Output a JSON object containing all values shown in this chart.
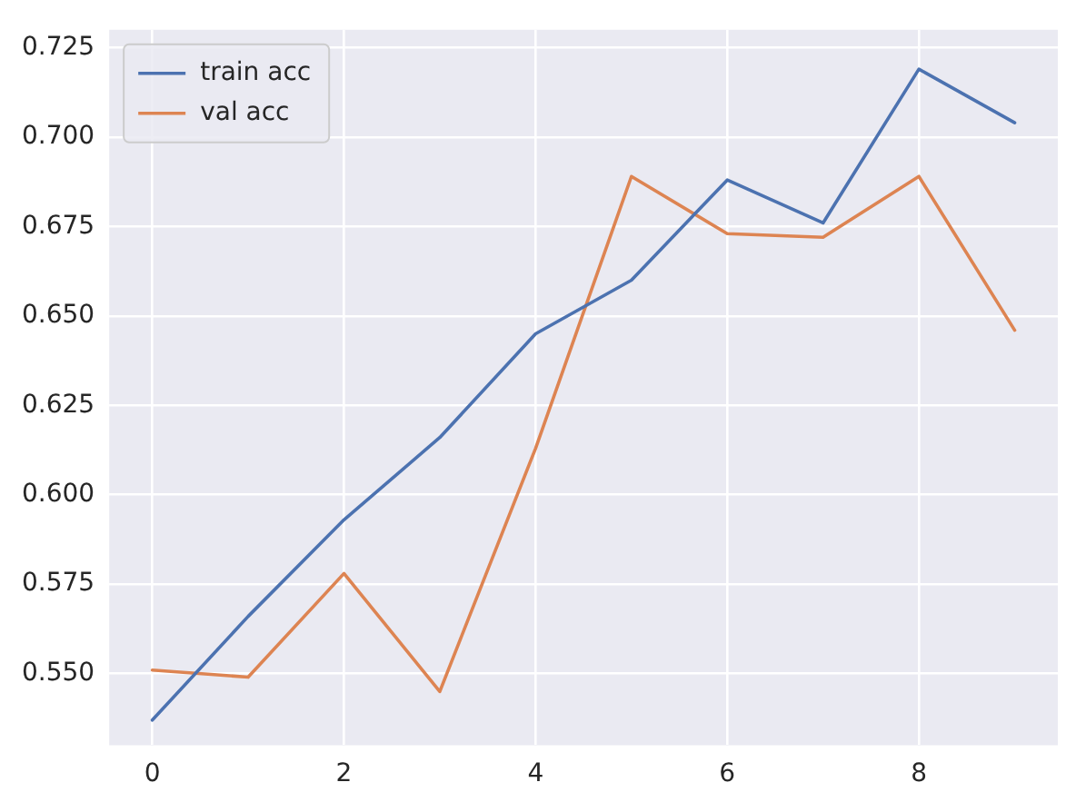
{
  "chart_data": {
    "type": "line",
    "x": [
      0,
      1,
      2,
      3,
      4,
      5,
      6,
      7,
      8,
      9
    ],
    "series": [
      {
        "name": "train acc",
        "color": "#4c72b0",
        "values": [
          0.537,
          0.566,
          0.593,
          0.616,
          0.645,
          0.66,
          0.688,
          0.676,
          0.719,
          0.704
        ]
      },
      {
        "name": "val acc",
        "color": "#dd8452",
        "values": [
          0.551,
          0.549,
          0.578,
          0.545,
          0.613,
          0.689,
          0.673,
          0.672,
          0.689,
          0.646
        ]
      }
    ],
    "xlim": [
      -0.45,
      9.45
    ],
    "xticks": [
      0,
      2,
      4,
      6,
      8
    ],
    "ylim": [
      0.53,
      0.73
    ],
    "yticks": [
      {
        "value": 0.55,
        "label": "0.550"
      },
      {
        "value": 0.575,
        "label": "0.575"
      },
      {
        "value": 0.6,
        "label": "0.600"
      },
      {
        "value": 0.625,
        "label": "0.625"
      },
      {
        "value": 0.65,
        "label": "0.650"
      },
      {
        "value": 0.675,
        "label": "0.675"
      },
      {
        "value": 0.7,
        "label": "0.700"
      },
      {
        "value": 0.725,
        "label": "0.725"
      }
    ],
    "grid": true,
    "legend": "top left",
    "marker": "none",
    "line_style": "solid"
  }
}
